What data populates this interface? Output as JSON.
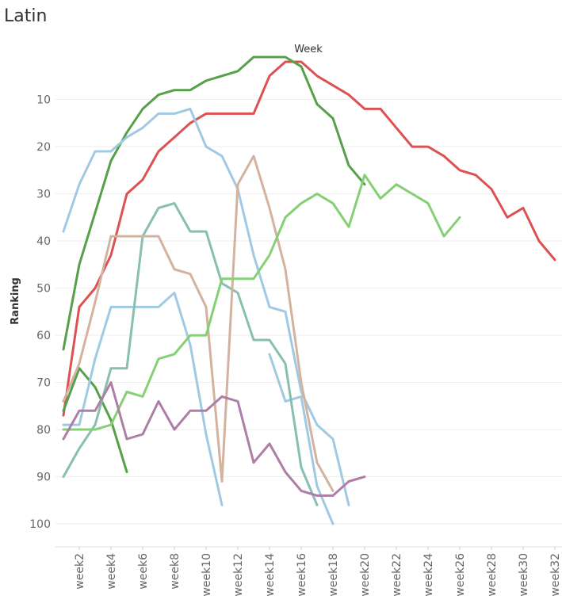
{
  "title": "Latin",
  "chart_data": {
    "type": "line",
    "title": "Latin",
    "xlabel": "Week",
    "ylabel": "Ranking",
    "x_ticks": [
      "week2",
      "week4",
      "week6",
      "week8",
      "week10",
      "week12",
      "week14",
      "week16",
      "week18",
      "week20",
      "week22",
      "week24",
      "week26",
      "week28",
      "week30",
      "week32"
    ],
    "y_ticks": [
      10,
      20,
      30,
      40,
      50,
      60,
      70,
      80,
      90,
      100
    ],
    "xlim": [
      1,
      33
    ],
    "ylim": [
      1,
      105
    ],
    "y_inverted": true,
    "grid": true,
    "series": [
      {
        "color": "#dc5252",
        "points": [
          [
            1,
            77
          ],
          [
            2,
            54
          ],
          [
            3,
            50
          ],
          [
            4,
            43
          ],
          [
            5,
            30
          ],
          [
            6,
            27
          ],
          [
            7,
            21
          ],
          [
            8,
            18
          ],
          [
            9,
            15
          ],
          [
            10,
            13
          ],
          [
            11,
            13
          ],
          [
            12,
            13
          ],
          [
            13,
            13
          ],
          [
            14,
            5
          ],
          [
            15,
            2
          ],
          [
            16,
            2
          ],
          [
            17,
            5
          ],
          [
            18,
            7
          ],
          [
            19,
            9
          ],
          [
            20,
            12
          ],
          [
            21,
            12
          ],
          [
            22,
            16
          ],
          [
            23,
            20
          ],
          [
            24,
            20
          ],
          [
            25,
            22
          ],
          [
            26,
            25
          ],
          [
            27,
            26
          ],
          [
            28,
            29
          ],
          [
            29,
            35
          ],
          [
            30,
            33
          ],
          [
            31,
            40
          ],
          [
            32,
            44
          ]
        ]
      },
      {
        "color": "#56a04a",
        "points": [
          [
            1,
            63
          ],
          [
            2,
            45
          ],
          [
            3,
            34
          ],
          [
            4,
            23
          ],
          [
            5,
            17
          ],
          [
            6,
            12
          ],
          [
            7,
            9
          ],
          [
            8,
            8
          ],
          [
            9,
            8
          ],
          [
            10,
            6
          ],
          [
            11,
            5
          ],
          [
            12,
            4
          ],
          [
            13,
            1
          ],
          [
            14,
            1
          ],
          [
            15,
            1
          ],
          [
            16,
            3
          ],
          [
            17,
            11
          ],
          [
            18,
            14
          ],
          [
            19,
            24
          ],
          [
            20,
            28
          ]
        ]
      },
      {
        "color": "#56a04a",
        "points": [
          [
            1,
            76
          ],
          [
            2,
            67
          ],
          [
            3,
            71
          ],
          [
            4,
            78
          ],
          [
            5,
            89
          ]
        ]
      },
      {
        "color": "#a0c9e4",
        "points": [
          [
            1,
            38
          ],
          [
            2,
            28
          ],
          [
            3,
            21
          ],
          [
            4,
            21
          ],
          [
            5,
            18
          ],
          [
            6,
            16
          ],
          [
            7,
            13
          ],
          [
            8,
            13
          ],
          [
            9,
            12
          ],
          [
            10,
            20
          ],
          [
            11,
            22
          ],
          [
            12,
            29
          ],
          [
            13,
            43
          ],
          [
            14,
            54
          ],
          [
            15,
            55
          ],
          [
            16,
            72
          ],
          [
            17,
            79
          ],
          [
            18,
            82
          ],
          [
            19,
            96
          ]
        ]
      },
      {
        "color": "#a0c9e4",
        "points": [
          [
            1,
            79
          ],
          [
            2,
            79
          ],
          [
            3,
            65
          ],
          [
            4,
            54
          ],
          [
            5,
            54
          ],
          [
            6,
            54
          ],
          [
            7,
            54
          ],
          [
            8,
            51
          ],
          [
            9,
            62
          ],
          [
            10,
            81
          ],
          [
            11,
            96
          ]
        ]
      },
      {
        "color": "#a0c9e4",
        "points": [
          [
            14,
            64
          ],
          [
            15,
            74
          ],
          [
            16,
            73
          ],
          [
            17,
            92
          ],
          [
            18,
            100
          ]
        ]
      },
      {
        "color": "#87bfb0",
        "points": [
          [
            1,
            90
          ],
          [
            2,
            84
          ],
          [
            3,
            79
          ],
          [
            4,
            67
          ],
          [
            5,
            67
          ],
          [
            6,
            39
          ],
          [
            7,
            33
          ],
          [
            8,
            32
          ],
          [
            9,
            38
          ],
          [
            10,
            38
          ],
          [
            11,
            49
          ],
          [
            12,
            51
          ],
          [
            13,
            61
          ],
          [
            14,
            61
          ],
          [
            15,
            66
          ],
          [
            16,
            88
          ],
          [
            17,
            96
          ]
        ]
      },
      {
        "color": "#d4b2a0",
        "points": [
          [
            1,
            74
          ],
          [
            2,
            66
          ],
          [
            3,
            53
          ],
          [
            4,
            39
          ],
          [
            5,
            39
          ],
          [
            6,
            39
          ],
          [
            7,
            39
          ],
          [
            8,
            46
          ],
          [
            9,
            47
          ],
          [
            10,
            54
          ],
          [
            11,
            91
          ],
          [
            12,
            28
          ],
          [
            13,
            22
          ],
          [
            14,
            33
          ],
          [
            15,
            46
          ],
          [
            16,
            70
          ],
          [
            17,
            87
          ],
          [
            18,
            93
          ]
        ]
      },
      {
        "color": "#85cf75",
        "points": [
          [
            1,
            80
          ],
          [
            2,
            80
          ],
          [
            3,
            80
          ],
          [
            4,
            79
          ],
          [
            5,
            72
          ],
          [
            6,
            73
          ],
          [
            7,
            65
          ],
          [
            8,
            64
          ],
          [
            9,
            60
          ],
          [
            10,
            60
          ],
          [
            11,
            48
          ],
          [
            12,
            48
          ],
          [
            13,
            48
          ],
          [
            14,
            43
          ],
          [
            15,
            35
          ],
          [
            16,
            32
          ],
          [
            17,
            30
          ],
          [
            18,
            32
          ],
          [
            19,
            37
          ],
          [
            20,
            26
          ],
          [
            21,
            31
          ],
          [
            22,
            28
          ],
          [
            23,
            30
          ],
          [
            24,
            32
          ],
          [
            25,
            39
          ],
          [
            26,
            35
          ]
        ]
      },
      {
        "color": "#ad7ea6",
        "points": [
          [
            1,
            82
          ],
          [
            2,
            76
          ],
          [
            3,
            76
          ],
          [
            4,
            70
          ],
          [
            5,
            82
          ],
          [
            6,
            81
          ],
          [
            7,
            74
          ],
          [
            8,
            80
          ],
          [
            9,
            76
          ],
          [
            10,
            76
          ],
          [
            11,
            73
          ],
          [
            12,
            74
          ],
          [
            13,
            87
          ],
          [
            14,
            83
          ],
          [
            15,
            89
          ],
          [
            16,
            93
          ],
          [
            17,
            94
          ],
          [
            18,
            94
          ],
          [
            19,
            91
          ],
          [
            20,
            90
          ]
        ]
      }
    ]
  }
}
